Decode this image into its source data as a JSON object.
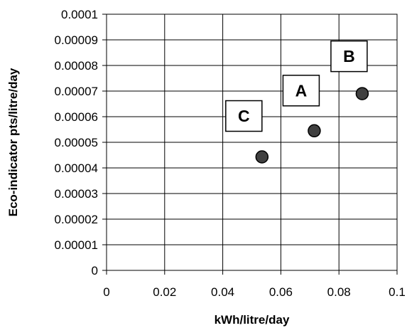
{
  "chart_data": {
    "type": "scatter",
    "title": "",
    "xlabel": "kWh/litre/day",
    "ylabel": "Eco-indicator pts/litre/day",
    "xlim": [
      0,
      0.1
    ],
    "ylim": [
      0,
      0.0001
    ],
    "grid": true,
    "x_ticks": [
      "0",
      "0.02",
      "0.04",
      "0.06",
      "0.08",
      "0.1"
    ],
    "y_ticks": [
      "0",
      "0.00001",
      "0.00002",
      "0.00003",
      "0.00004",
      "0.00005",
      "0.00006",
      "0.00007",
      "0.00008",
      "0.00009",
      "0.0001"
    ],
    "points": [
      {
        "label": "A",
        "x": 0.0715,
        "y": 5.45e-05
      },
      {
        "label": "B",
        "x": 0.088,
        "y": 6.9e-05
      },
      {
        "label": "C",
        "x": 0.0535,
        "y": 4.43e-05
      }
    ],
    "marker_color": "#404040"
  }
}
